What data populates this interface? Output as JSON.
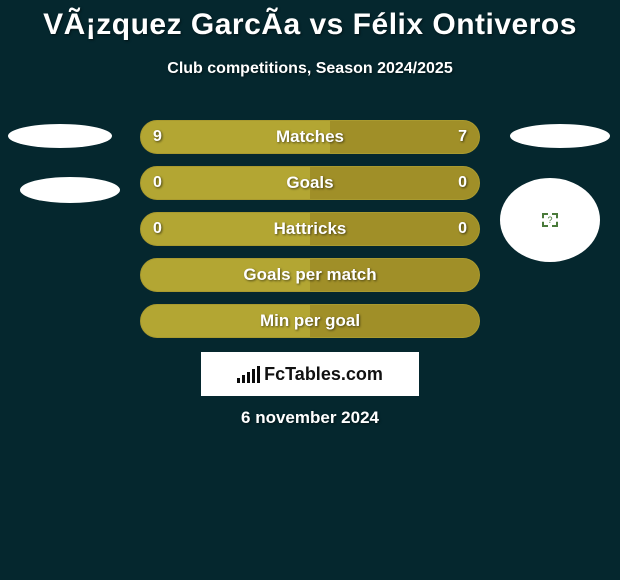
{
  "colors": {
    "background": "#05272e",
    "title": "#ffffff",
    "subtitle": "#ffffff",
    "row_bg": "#a99a2f",
    "row_fill_left": "#b3a633",
    "row_fill_right": "#a08f28",
    "row_text": "#ffffff",
    "avatar_left": "#ffffff",
    "avatar_right": "#ffffff",
    "brand_bg": "#ffffff",
    "brand_bar": "#0b0b0b",
    "date_text": "#ffffff"
  },
  "header": {
    "title": "VÃ¡zquez GarcÃ­a vs Félix Ontiveros",
    "subtitle": "Club competitions, Season 2024/2025"
  },
  "rows": [
    {
      "label": "Matches",
      "left": "9",
      "right": "7",
      "left_pct": 56,
      "right_pct": 44
    },
    {
      "label": "Goals",
      "left": "0",
      "right": "0",
      "left_pct": 50,
      "right_pct": 50
    },
    {
      "label": "Hattricks",
      "left": "0",
      "right": "0",
      "left_pct": 50,
      "right_pct": 50
    },
    {
      "label": "Goals per match",
      "left": "",
      "right": "",
      "left_pct": 50,
      "right_pct": 50
    },
    {
      "label": "Min per goal",
      "left": "",
      "right": "",
      "left_pct": 50,
      "right_pct": 50
    }
  ],
  "brand": {
    "text": "FcTables.com"
  },
  "footer": {
    "date": "6 november 2024"
  }
}
